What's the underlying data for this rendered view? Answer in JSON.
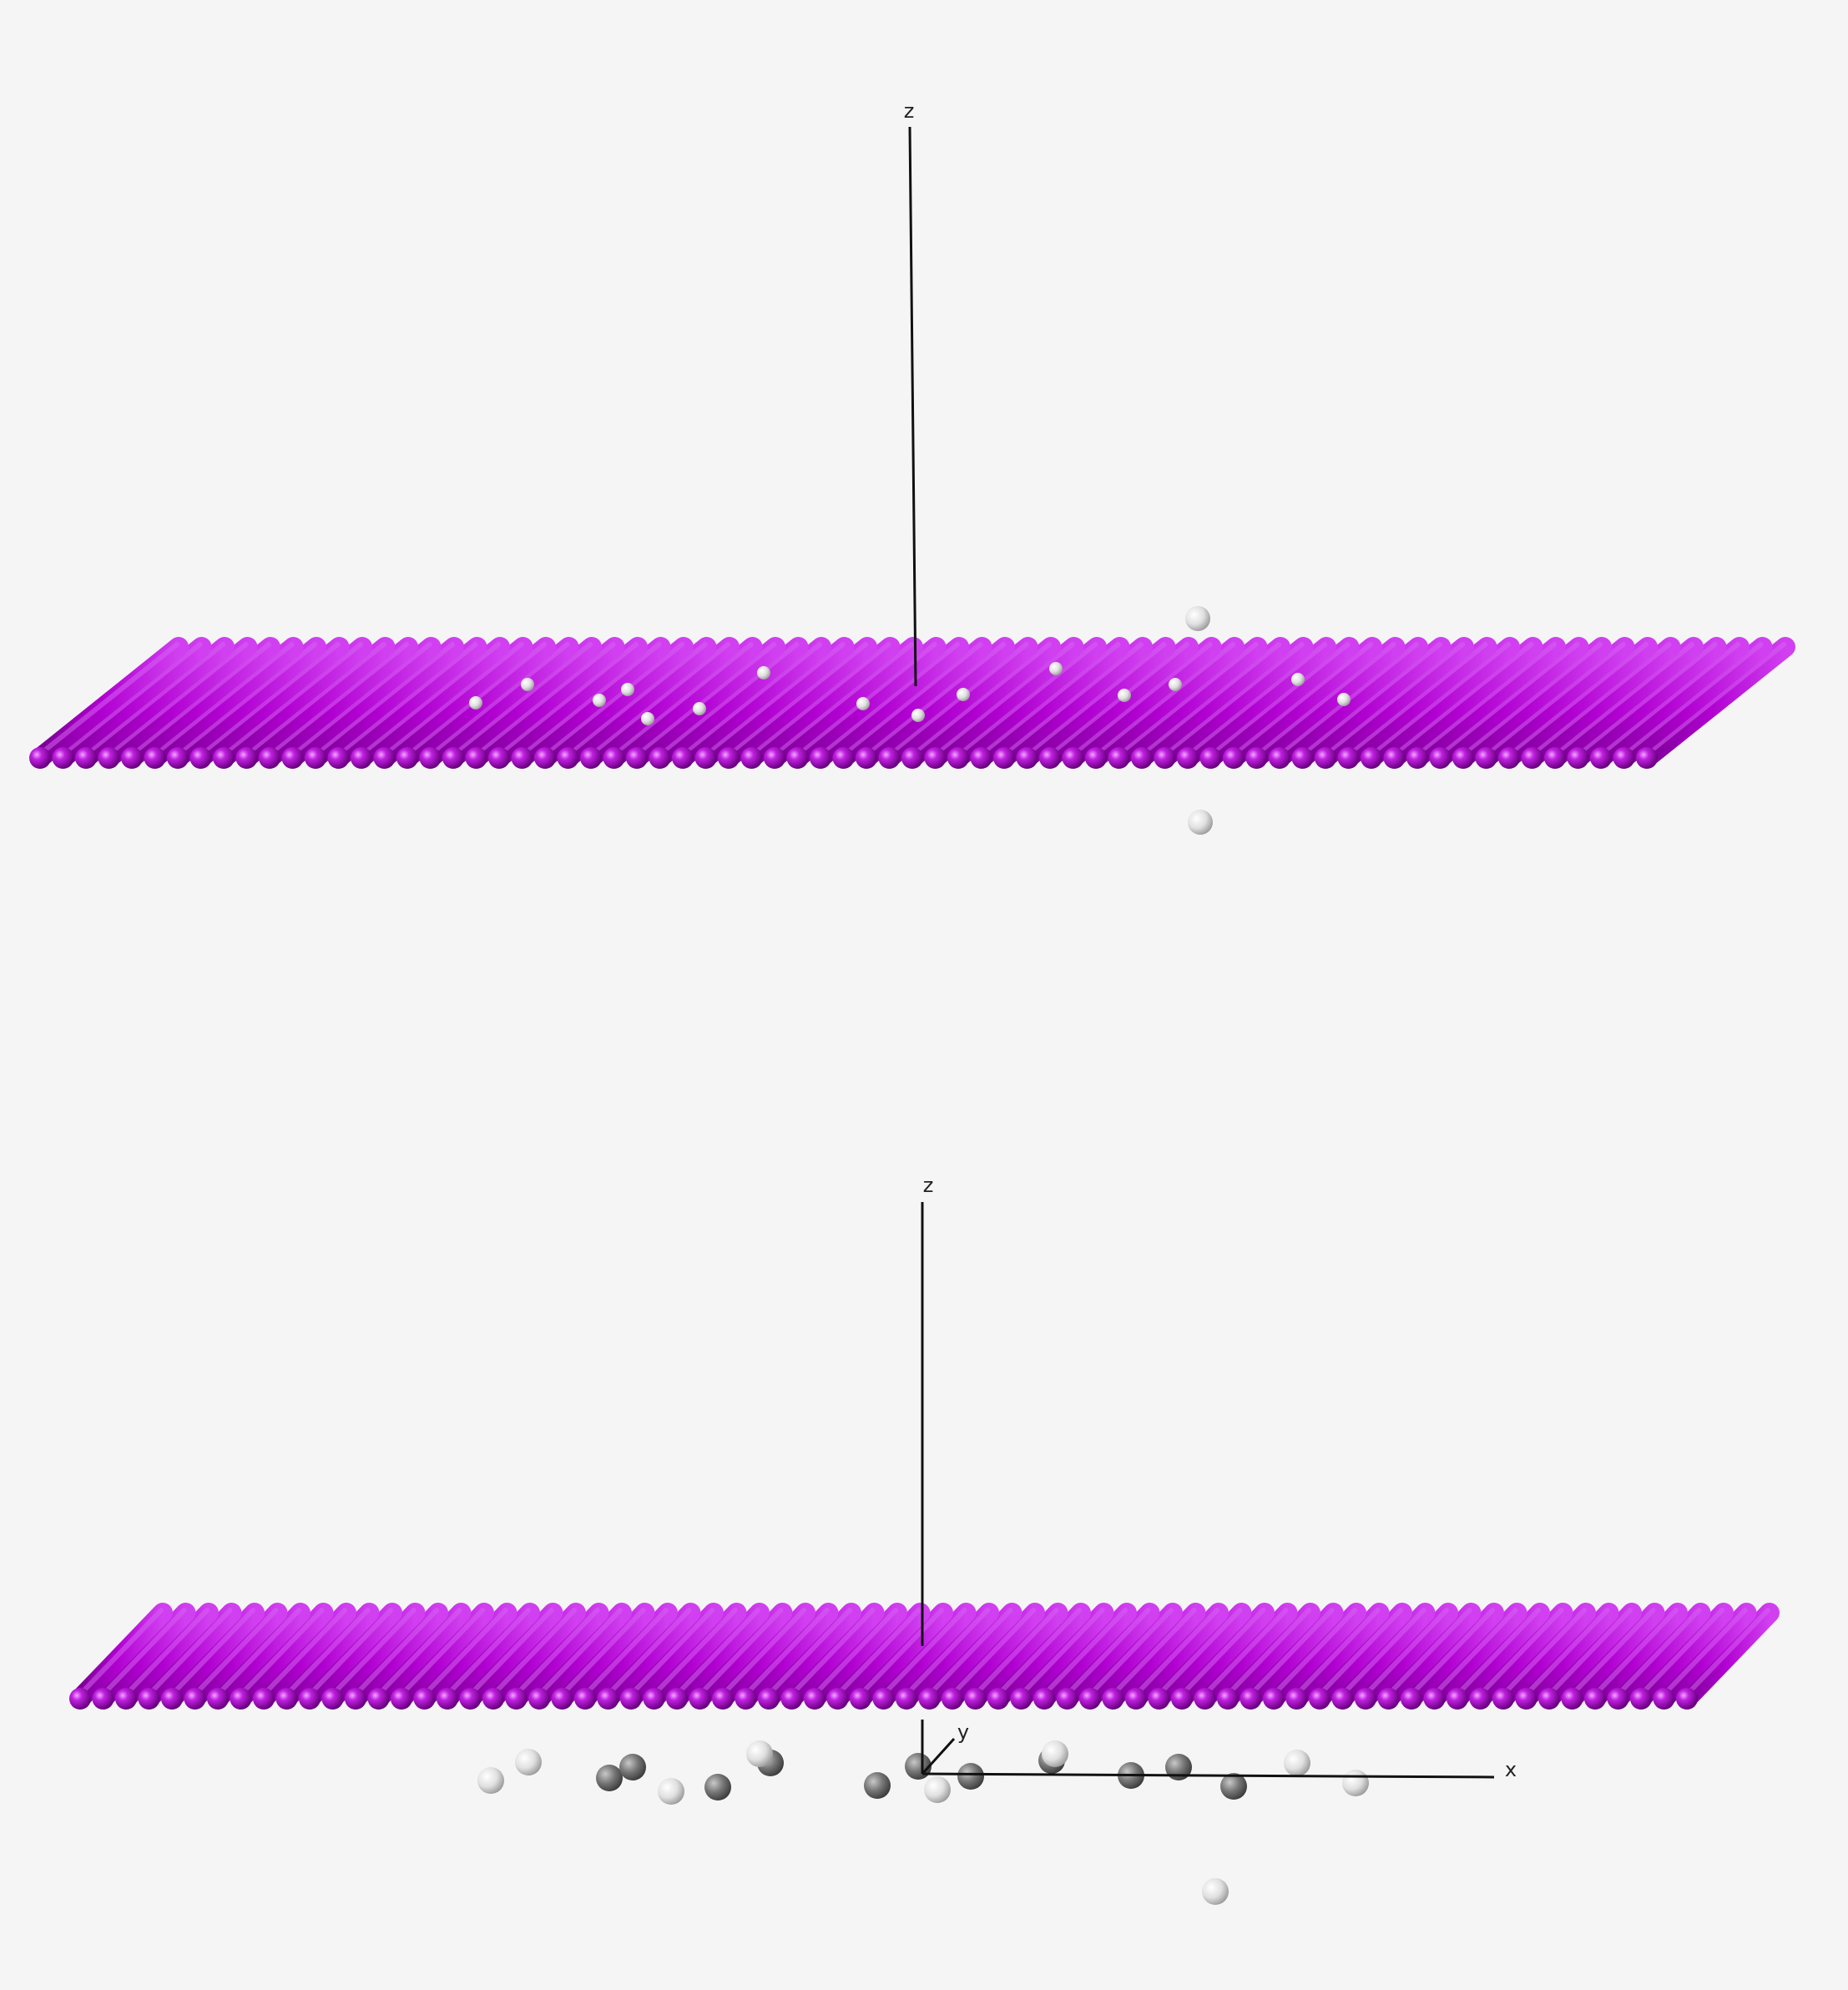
{
  "colors": {
    "background": "#f5f5f5",
    "sheet_atom": "#b000d0",
    "sheet_atom_highlight": "#e070ff",
    "light_atom": "#e8e8e8",
    "dark_atom": "#707070",
    "axis": "#111111"
  },
  "views": [
    {
      "id": "top-view",
      "axis_labels": {
        "z": "z"
      }
    },
    {
      "id": "bottom-view",
      "axis_labels": {
        "z": "z",
        "y": "y",
        "x": "x"
      }
    }
  ]
}
